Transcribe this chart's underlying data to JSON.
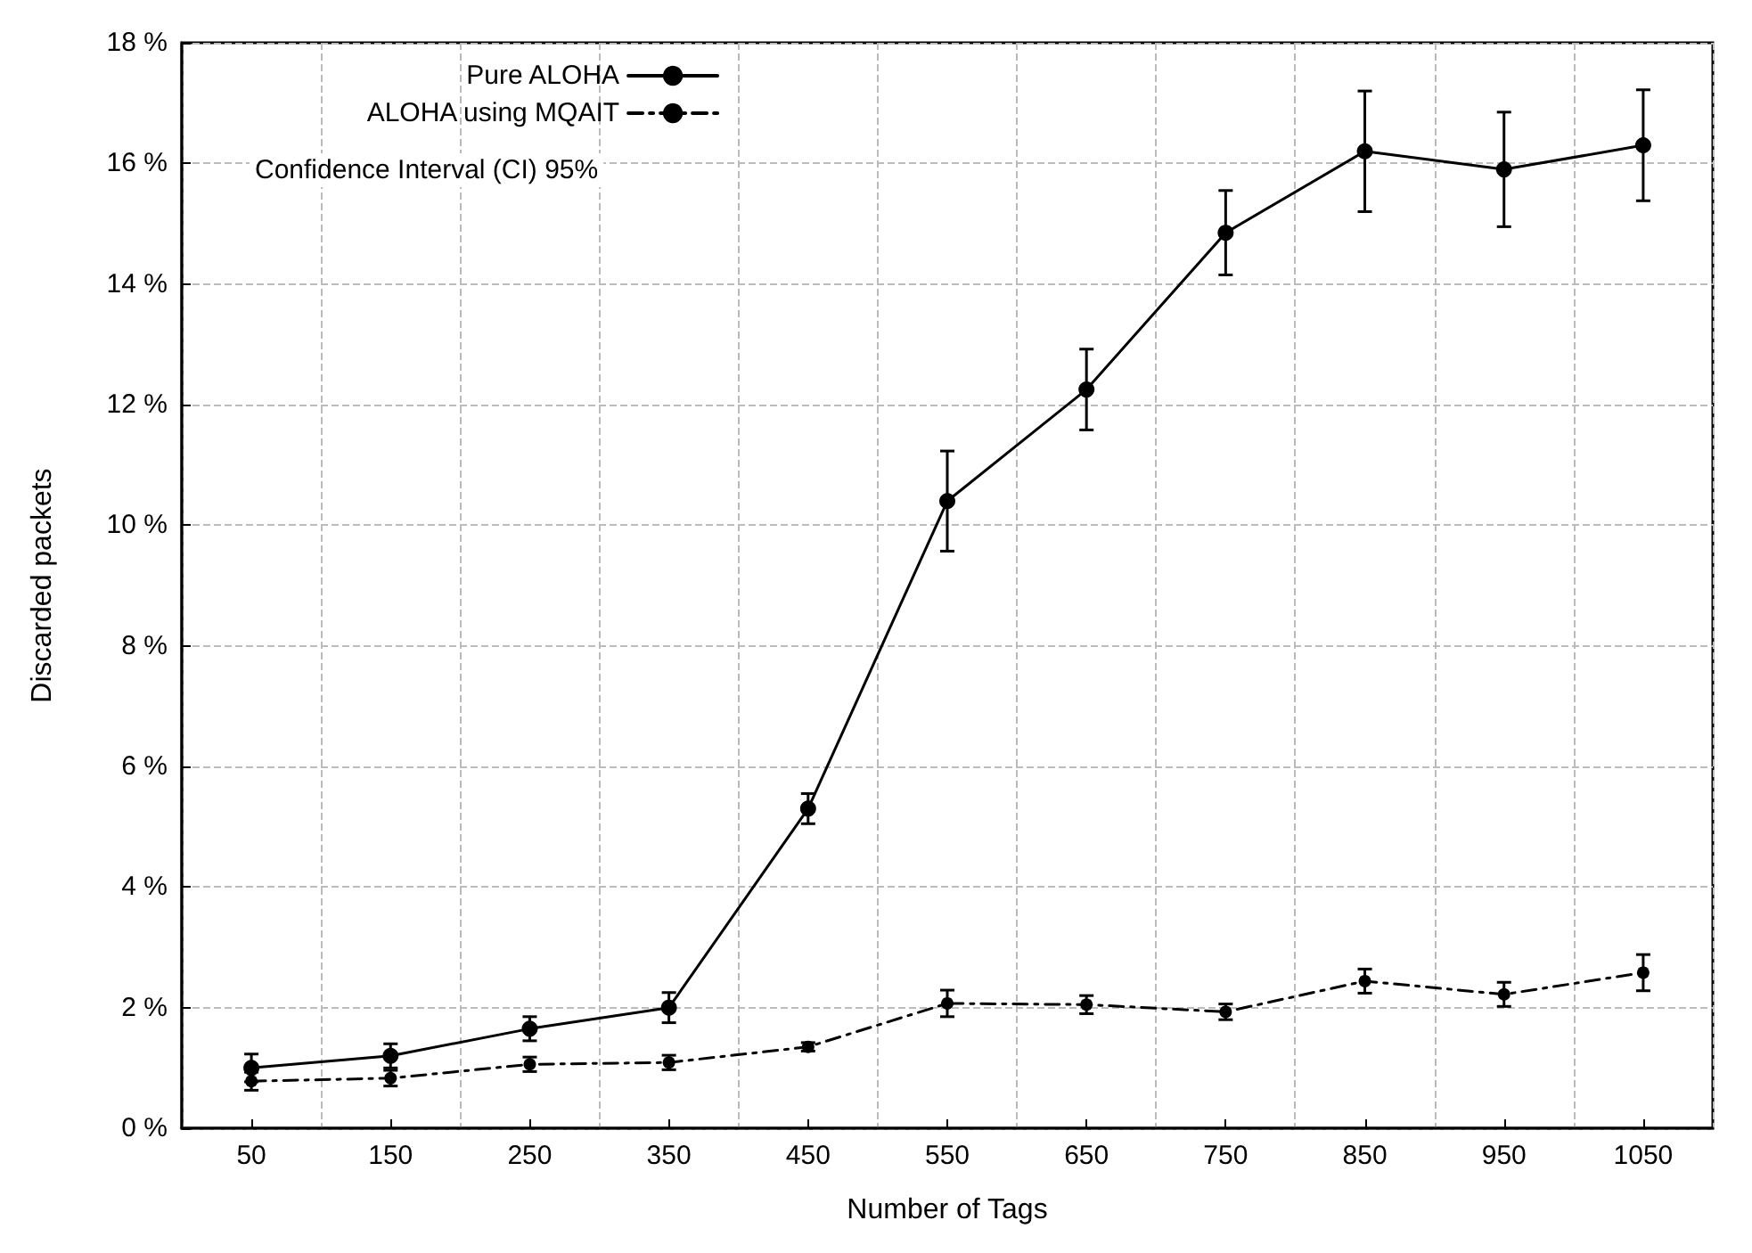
{
  "chart_data": {
    "type": "line",
    "xlabel": "Number of Tags",
    "ylabel": "Discarded packets",
    "categories": [
      "50",
      "150",
      "250",
      "350",
      "450",
      "550",
      "650",
      "750",
      "850",
      "950",
      "1050"
    ],
    "series": [
      {
        "name": "Pure ALOHA",
        "color": "#000000",
        "line_style": "solid",
        "values": [
          1.0,
          1.2,
          1.65,
          2.0,
          5.3,
          10.4,
          12.25,
          14.85,
          16.2,
          15.9,
          16.3
        ],
        "errors": [
          0.23,
          0.2,
          0.2,
          0.25,
          0.25,
          0.83,
          0.67,
          0.7,
          1.0,
          0.95,
          0.92
        ]
      },
      {
        "name": "ALOHA using MQAIT",
        "color": "#000000",
        "line_style": "dashed",
        "values": [
          0.78,
          0.83,
          1.06,
          1.09,
          1.35,
          2.07,
          2.05,
          1.93,
          2.44,
          2.22,
          2.58
        ],
        "errors": [
          0.15,
          0.13,
          0.12,
          0.12,
          0.07,
          0.22,
          0.15,
          0.13,
          0.2,
          0.2,
          0.3
        ]
      }
    ],
    "ylim": [
      0,
      18
    ],
    "yticks": [
      {
        "value": 0,
        "label": "0 %"
      },
      {
        "value": 2,
        "label": "2 %"
      },
      {
        "value": 4,
        "label": "4 %"
      },
      {
        "value": 6,
        "label": "6 %"
      },
      {
        "value": 8,
        "label": "8 %"
      },
      {
        "value": 10,
        "label": "10 %"
      },
      {
        "value": 12,
        "label": "12 %"
      },
      {
        "value": 14,
        "label": "14 %"
      },
      {
        "value": 16,
        "label": "16 %"
      },
      {
        "value": 18,
        "label": "18 %"
      }
    ],
    "annotations": [
      "Confidence Interval (CI) 95%"
    ],
    "grid": true,
    "legend": "top left",
    "marker": "circle"
  }
}
